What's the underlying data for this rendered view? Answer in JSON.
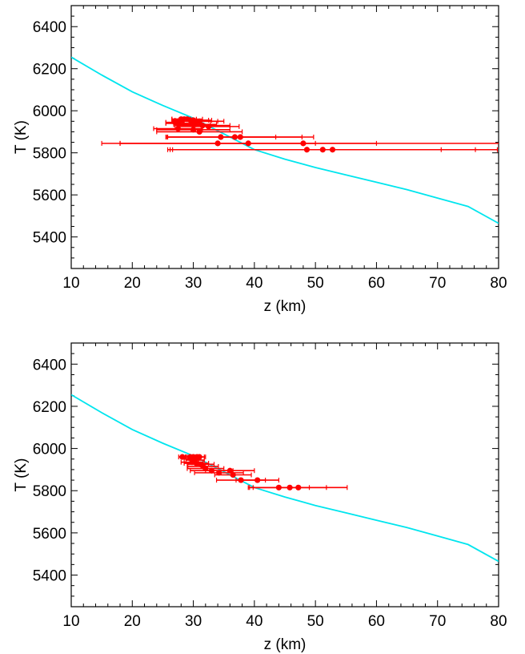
{
  "chart_data": [
    {
      "type": "scatter",
      "xlabel": "z (km)",
      "ylabel": "T (K)",
      "xlim": [
        10,
        80
      ],
      "ylim": [
        5250,
        6500
      ],
      "xticks": [
        10,
        20,
        30,
        40,
        50,
        60,
        70,
        80
      ],
      "yticks": [
        5400,
        5600,
        5800,
        6000,
        6200,
        6400
      ],
      "grid": false,
      "curve": {
        "color": "#00e5ee",
        "x": [
          10,
          15,
          20,
          25,
          30,
          35,
          40,
          45,
          50,
          55,
          60,
          65,
          70,
          75,
          80
        ],
        "y": [
          6255,
          6170,
          6090,
          6025,
          5965,
          5890,
          5815,
          5770,
          5730,
          5695,
          5660,
          5625,
          5585,
          5545,
          5465
        ]
      },
      "points": {
        "color": "#ff0000",
        "x": [
          28.0,
          28.5,
          29.0,
          29.5,
          30.0,
          30.5,
          31.0,
          27.0,
          27.5,
          29.8,
          30.3,
          31.5,
          32.5,
          27.5,
          30.0,
          31.0,
          34.5,
          36.8,
          37.7,
          34.0,
          39.0,
          48.0,
          48.6,
          51.2,
          52.8
        ],
        "y": [
          5960,
          5960,
          5960,
          5955,
          5955,
          5950,
          5950,
          5945,
          5940,
          5935,
          5935,
          5930,
          5925,
          5915,
          5910,
          5900,
          5875,
          5875,
          5875,
          5845,
          5845,
          5845,
          5815,
          5815,
          5815
        ],
        "xerr": [
          1.5,
          2.0,
          2.5,
          3.0,
          3.0,
          3.5,
          4.0,
          1.5,
          2.0,
          3.0,
          3.5,
          4.5,
          5.0,
          4.0,
          6.0,
          7.0,
          9.0,
          11.0,
          12.0,
          16.0,
          21.0,
          33.0,
          22.0,
          25.0,
          27.0
        ]
      }
    },
    {
      "type": "scatter",
      "xlabel": "z (km)",
      "ylabel": "T (K)",
      "xlim": [
        10,
        80
      ],
      "ylim": [
        5250,
        6500
      ],
      "xticks": [
        10,
        20,
        30,
        40,
        50,
        60,
        70,
        80
      ],
      "yticks": [
        5400,
        5600,
        5800,
        6000,
        6200,
        6400
      ],
      "grid": false,
      "curve": {
        "color": "#00e5ee",
        "x": [
          10,
          15,
          20,
          25,
          30,
          35,
          40,
          45,
          50,
          55,
          60,
          65,
          70,
          75,
          80
        ],
        "y": [
          6255,
          6170,
          6090,
          6025,
          5965,
          5890,
          5815,
          5770,
          5730,
          5695,
          5660,
          5625,
          5585,
          5545,
          5465
        ]
      },
      "points": {
        "color": "#ff0000",
        "x": [
          28.2,
          29.5,
          30.0,
          30.6,
          31.0,
          29.7,
          30.3,
          29.8,
          30.5,
          31.2,
          31.6,
          32.0,
          33.0,
          34.2,
          36.0,
          37.8,
          40.5,
          44.0,
          45.8,
          47.2,
          36.5
        ],
        "y": [
          5960,
          5960,
          5960,
          5960,
          5960,
          5950,
          5945,
          5935,
          5930,
          5925,
          5915,
          5905,
          5895,
          5885,
          5895,
          5850,
          5850,
          5815,
          5815,
          5815,
          5875
        ],
        "xerr": [
          0.6,
          0.8,
          1.0,
          1.2,
          1.0,
          1.2,
          1.5,
          1.8,
          2.0,
          2.2,
          2.5,
          3.0,
          3.5,
          4.0,
          4.0,
          4.0,
          3.5,
          5.0,
          6.0,
          8.0,
          3.0
        ]
      }
    }
  ]
}
